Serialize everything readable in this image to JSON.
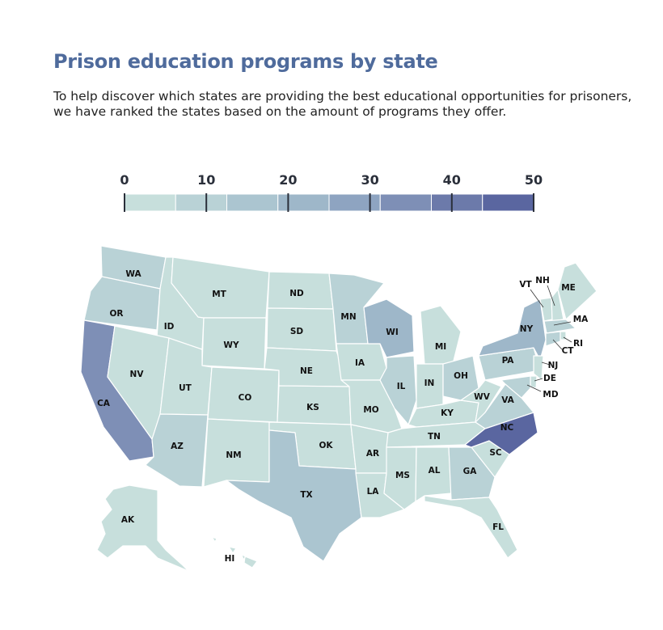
{
  "title": "Prison education programs by state",
  "subtitle": "To help discover which states are providing the best educational opportunities for prisoners, we have ranked the states based on the amount of programs they offer.",
  "legend": {
    "ticks": [
      "0",
      "10",
      "20",
      "30",
      "40",
      "50"
    ],
    "colors": [
      "#c7dfdc",
      "#b9d2d6",
      "#abc5d0",
      "#9eb7c9",
      "#8ea4c1",
      "#7e8fb6",
      "#6c7aaa",
      "#5a66a0"
    ]
  },
  "states": [
    {
      "code": "WA",
      "level": 1
    },
    {
      "code": "OR",
      "level": 1
    },
    {
      "code": "CA",
      "level": 5
    },
    {
      "code": "ID",
      "level": 0
    },
    {
      "code": "NV",
      "level": 0
    },
    {
      "code": "MT",
      "level": 0
    },
    {
      "code": "WY",
      "level": 0
    },
    {
      "code": "UT",
      "level": 0
    },
    {
      "code": "AZ",
      "level": 1
    },
    {
      "code": "CO",
      "level": 0
    },
    {
      "code": "NM",
      "level": 0
    },
    {
      "code": "ND",
      "level": 0
    },
    {
      "code": "SD",
      "level": 0
    },
    {
      "code": "NE",
      "level": 0
    },
    {
      "code": "KS",
      "level": 0
    },
    {
      "code": "OK",
      "level": 0
    },
    {
      "code": "TX",
      "level": 2
    },
    {
      "code": "MN",
      "level": 1
    },
    {
      "code": "IA",
      "level": 0
    },
    {
      "code": "MO",
      "level": 0
    },
    {
      "code": "AR",
      "level": 0
    },
    {
      "code": "LA",
      "level": 0
    },
    {
      "code": "WI",
      "level": 3
    },
    {
      "code": "IL",
      "level": 1
    },
    {
      "code": "MI",
      "level": 0
    },
    {
      "code": "IN",
      "level": 0
    },
    {
      "code": "OH",
      "level": 1
    },
    {
      "code": "KY",
      "level": 0
    },
    {
      "code": "TN",
      "level": 0
    },
    {
      "code": "MS",
      "level": 0
    },
    {
      "code": "AL",
      "level": 0
    },
    {
      "code": "GA",
      "level": 1
    },
    {
      "code": "FL",
      "level": 0
    },
    {
      "code": "SC",
      "level": 0
    },
    {
      "code": "NC",
      "level": 7
    },
    {
      "code": "VA",
      "level": 1
    },
    {
      "code": "WV",
      "level": 0
    },
    {
      "code": "PA",
      "level": 1
    },
    {
      "code": "NY",
      "level": 3
    },
    {
      "code": "VT",
      "level": 0
    },
    {
      "code": "NH",
      "level": 0
    },
    {
      "code": "ME",
      "level": 0
    },
    {
      "code": "MA",
      "level": 1
    },
    {
      "code": "RI",
      "level": 0
    },
    {
      "code": "CT",
      "level": 1
    },
    {
      "code": "NJ",
      "level": 0
    },
    {
      "code": "DE",
      "level": 0
    },
    {
      "code": "MD",
      "level": 1
    },
    {
      "code": "AK",
      "level": 0
    },
    {
      "code": "HI",
      "level": 0
    }
  ]
}
